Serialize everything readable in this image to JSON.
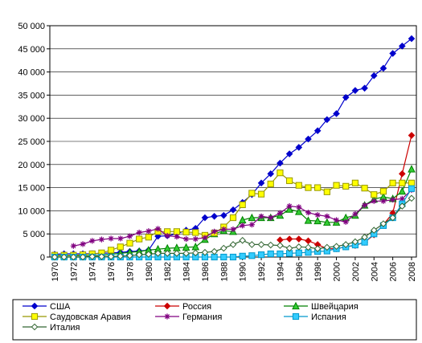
{
  "chart_data": {
    "type": "line",
    "title": "",
    "xlabel": "",
    "ylabel": "",
    "x": [
      1970,
      1971,
      1972,
      1973,
      1974,
      1975,
      1976,
      1977,
      1978,
      1979,
      1980,
      1981,
      1982,
      1983,
      1984,
      1985,
      1986,
      1987,
      1988,
      1989,
      1990,
      1991,
      1992,
      1993,
      1994,
      1995,
      1996,
      1997,
      1998,
      1999,
      2000,
      2001,
      2002,
      2003,
      2004,
      2005,
      2006,
      2007,
      2008
    ],
    "xticks": [
      "1970",
      "1972",
      "1974",
      "1976",
      "1978",
      "1980",
      "1982",
      "1984",
      "1986",
      "1988",
      "1990",
      "1992",
      "1994",
      "1996",
      "1998",
      "2000",
      "2002",
      "2004",
      "2006",
      "2008"
    ],
    "xlim": [
      1970,
      2008
    ],
    "ylim": [
      0,
      50000
    ],
    "yticks": [
      "0",
      "5 000",
      "10 000",
      "15 000",
      "20 000",
      "25 000",
      "30 000",
      "35 000",
      "40 000",
      "45 000",
      "50 000"
    ],
    "ytick_values": [
      0,
      5000,
      10000,
      15000,
      20000,
      25000,
      30000,
      35000,
      40000,
      45000,
      50000
    ],
    "grid": "horizontal",
    "legend_position": "bottom",
    "series": [
      {
        "name": "США",
        "color": "#0000cc",
        "marker": "diamond",
        "values": [
          600,
          700,
          700,
          700,
          700,
          800,
          900,
          1000,
          1200,
          1300,
          1500,
          4500,
          4600,
          5000,
          5800,
          6200,
          8500,
          8800,
          9000,
          10200,
          11800,
          13500,
          16000,
          18000,
          20300,
          22300,
          23700,
          25500,
          27300,
          29700,
          31000,
          34500,
          36000,
          36500,
          39200,
          40800,
          44000,
          45600,
          47200
        ]
      },
      {
        "name": "Россия",
        "color": "#cc0000",
        "marker": "diamond",
        "values": [
          null,
          null,
          null,
          null,
          null,
          null,
          null,
          null,
          null,
          null,
          null,
          null,
          null,
          null,
          null,
          null,
          null,
          null,
          null,
          null,
          null,
          null,
          null,
          null,
          3700,
          3900,
          3900,
          3500,
          2700,
          1800,
          1800,
          2200,
          2500,
          3200,
          4800,
          7000,
          9500,
          18000,
          26300
        ]
      },
      {
        "name": "Швейцария",
        "color": "#008000",
        "fill": "#33cc33",
        "marker": "triangle",
        "values": [
          300,
          300,
          300,
          300,
          300,
          400,
          600,
          800,
          1000,
          1200,
          1500,
          1700,
          1900,
          2000,
          2100,
          2200,
          3800,
          5000,
          5700,
          5500,
          8000,
          8500,
          8500,
          8500,
          9000,
          10300,
          9800,
          7900,
          7800,
          7500,
          7500,
          8500,
          9000,
          11200,
          12500,
          13000,
          12600,
          14200,
          19000
        ]
      },
      {
        "name": "Саудовская Аравия",
        "color": "#999900",
        "fill": "#ffff00",
        "marker": "square",
        "values": [
          400,
          400,
          400,
          500,
          700,
          900,
          1500,
          2200,
          3000,
          3900,
          4300,
          5500,
          5500,
          5500,
          5400,
          5300,
          4700,
          5200,
          6500,
          8500,
          11300,
          13800,
          13600,
          15800,
          18200,
          16500,
          15500,
          15000,
          15000,
          14100,
          15500,
          15300,
          16000,
          14900,
          13500,
          14200,
          16000,
          16000,
          16000
        ]
      },
      {
        "name": "Германия",
        "color": "#800080",
        "marker": "star",
        "values": [
          null,
          null,
          2400,
          2800,
          3500,
          3800,
          4000,
          4000,
          4500,
          5300,
          5600,
          6100,
          4600,
          4400,
          3900,
          3900,
          4200,
          5500,
          6000,
          6000,
          6800,
          7000,
          8800,
          8500,
          9500,
          11000,
          10800,
          9600,
          9100,
          8800,
          8000,
          7600,
          9300,
          11200,
          12100,
          12100,
          12400,
          12600,
          14500
        ]
      },
      {
        "name": "Испания",
        "color": "#0099cc",
        "fill": "#33ccff",
        "marker": "square",
        "values": [
          0,
          0,
          0,
          0,
          0,
          0,
          0,
          0,
          0,
          0,
          0,
          0,
          0,
          0,
          0,
          0,
          0,
          0,
          0,
          0,
          200,
          300,
          500,
          700,
          700,
          800,
          900,
          1000,
          1200,
          1300,
          1800,
          2200,
          2600,
          3200,
          5000,
          6800,
          8500,
          11500,
          14800
        ]
      },
      {
        "name": "Италия",
        "color": "#336633",
        "fill": "#ffffff",
        "marker": "diamond",
        "values": [
          0,
          0,
          0,
          0,
          100,
          100,
          100,
          200,
          300,
          500,
          600,
          800,
          800,
          800,
          800,
          900,
          1000,
          1200,
          1900,
          2700,
          3600,
          2700,
          2700,
          2600,
          2500,
          1900,
          2200,
          2100,
          1800,
          2100,
          2300,
          2700,
          3300,
          4300,
          5800,
          7200,
          8500,
          11000,
          12700
        ]
      }
    ]
  }
}
